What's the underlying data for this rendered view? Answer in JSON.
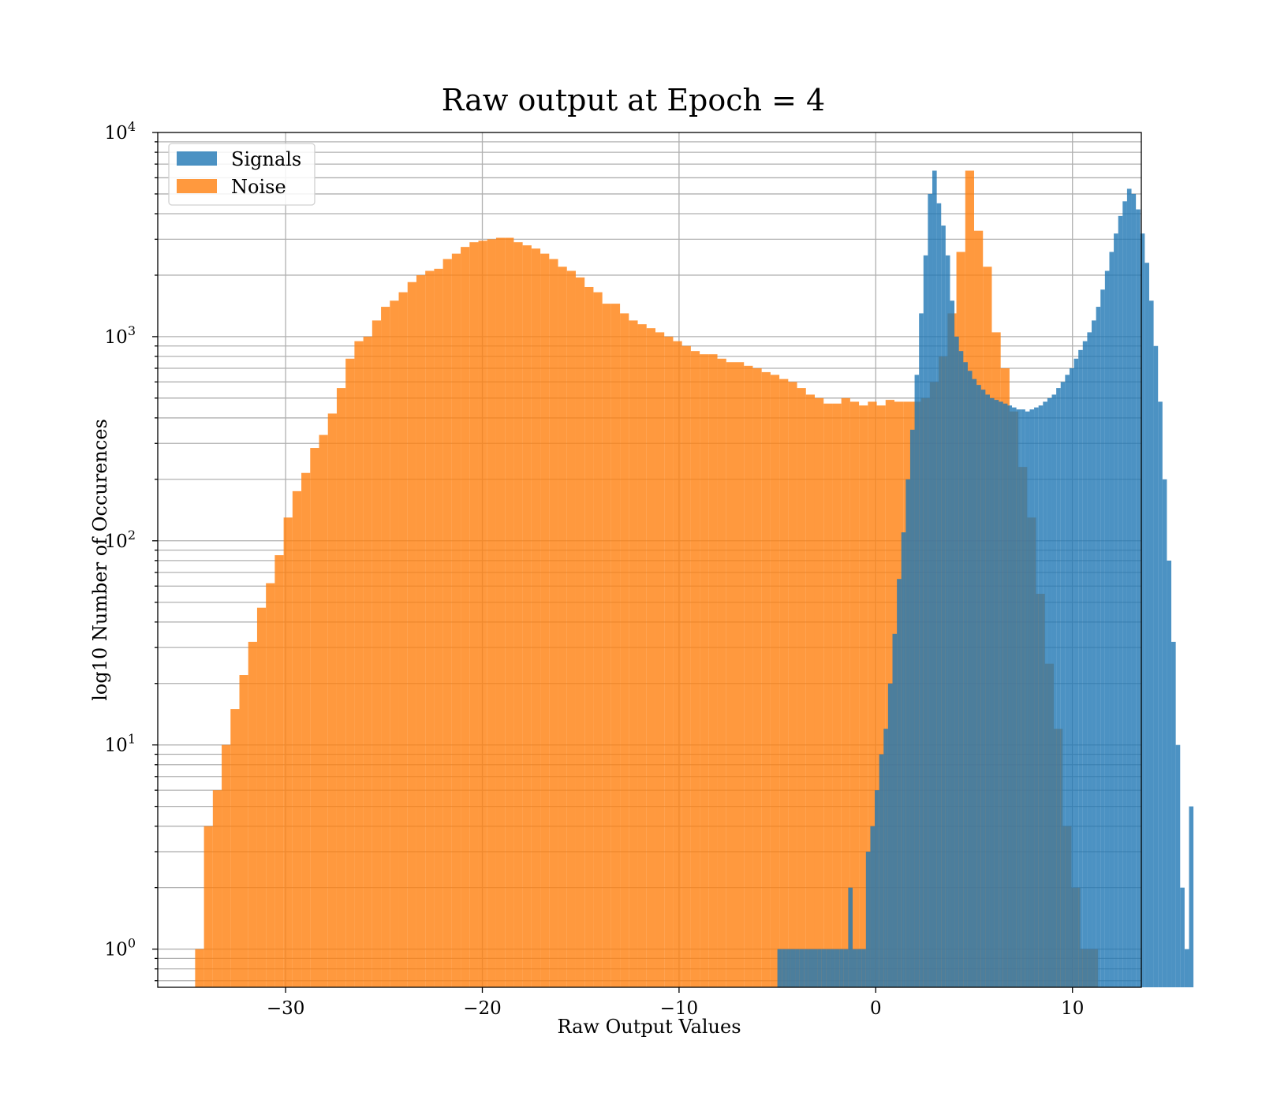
{
  "chart_data": {
    "type": "bar",
    "subtype": "histogram",
    "title": "Raw output at Epoch = 4",
    "xlabel": "Raw Output Values",
    "ylabel": "log10 Number of Occurences",
    "yscale": "log",
    "xlim": [
      -36.5,
      13.5
    ],
    "ylim": [
      0.65,
      10000
    ],
    "xticks": [
      -30,
      -20,
      -10,
      0,
      10
    ],
    "xtick_labels": [
      "−30",
      "−20",
      "−10",
      "0",
      "10"
    ],
    "yticks": [
      {
        "value": 1,
        "base": "10",
        "exp": "0"
      },
      {
        "value": 10,
        "base": "10",
        "exp": "1"
      },
      {
        "value": 100,
        "base": "10",
        "exp": "2"
      },
      {
        "value": 1000,
        "base": "10",
        "exp": "3"
      },
      {
        "value": 10000,
        "base": "10",
        "exp": "4"
      }
    ],
    "grid": true,
    "legend_position": "top-left",
    "series": [
      {
        "name": "Noise",
        "color": "#ff7f0e",
        "bin_start": -34.6,
        "bin_width": 0.45,
        "values": [
          1,
          4,
          6,
          10,
          15,
          22,
          32,
          47,
          62,
          85,
          130,
          175,
          215,
          285,
          330,
          420,
          560,
          780,
          950,
          1000,
          1200,
          1400,
          1500,
          1650,
          1850,
          2000,
          2100,
          2150,
          2400,
          2550,
          2750,
          2900,
          2950,
          3000,
          3050,
          3050,
          2900,
          2800,
          2700,
          2550,
          2400,
          2200,
          2100,
          1950,
          1750,
          1650,
          1450,
          1450,
          1300,
          1200,
          1150,
          1100,
          1050,
          1000,
          950,
          900,
          850,
          820,
          820,
          780,
          750,
          750,
          720,
          700,
          670,
          650,
          620,
          600,
          560,
          520,
          500,
          470,
          470,
          500,
          480,
          460,
          480,
          460,
          490,
          480,
          480,
          480,
          500,
          600,
          800,
          1300,
          2600,
          6500,
          3300,
          2200,
          1050,
          700,
          430,
          230,
          130,
          55,
          25,
          12,
          4,
          2,
          1,
          1
        ]
      },
      {
        "name": "Signals",
        "color": "#1f77b4",
        "bin_start": -5.0,
        "bin_width": 0.225,
        "values": [
          1,
          1,
          1,
          1,
          1,
          1,
          1,
          1,
          1,
          1,
          1,
          1,
          1,
          1,
          1,
          1,
          2,
          1,
          1,
          1,
          3,
          4,
          6,
          9,
          12,
          20,
          35,
          65,
          110,
          200,
          350,
          650,
          1300,
          2500,
          5000,
          6500,
          4500,
          3500,
          2500,
          1500,
          1000,
          850,
          750,
          680,
          620,
          580,
          550,
          520,
          500,
          490,
          480,
          470,
          460,
          450,
          440,
          440,
          430,
          440,
          450,
          460,
          480,
          500,
          520,
          560,
          600,
          650,
          700,
          780,
          860,
          950,
          1050,
          1200,
          1400,
          1700,
          2100,
          2600,
          3200,
          3900,
          4600,
          5300,
          5000,
          4200,
          3200,
          2300,
          1500,
          900,
          480,
          200,
          80,
          32,
          10,
          2,
          1,
          5
        ]
      }
    ]
  }
}
